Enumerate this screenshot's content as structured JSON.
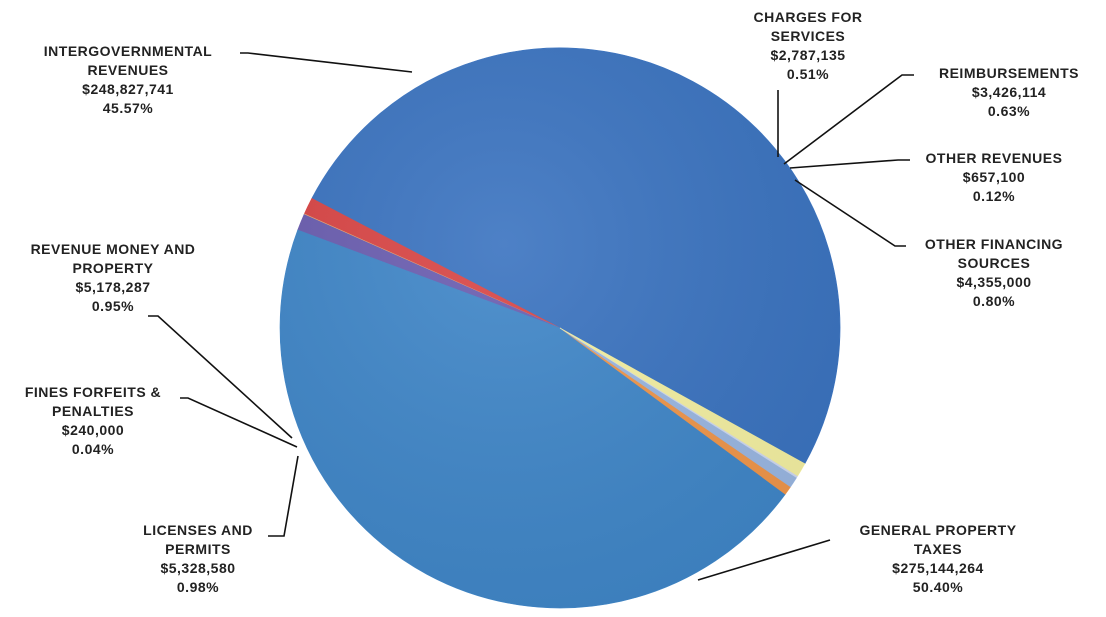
{
  "chart_data": {
    "type": "pie",
    "start_angle_deg": 331,
    "direction": "counterclockwise",
    "colors": {
      "intergovernmental": "#3f86c8",
      "charges": "#f0964a",
      "reimbursements": "#9ab7e2",
      "other_revenues": "#cfd9f2",
      "other_financing": "#f4f0a2",
      "general_property": "#3a73c0",
      "licenses": "#d94545",
      "fines": "#ecae73",
      "revenue_money": "#6a5db0",
      "leader": "#111111"
    },
    "slices": [
      {
        "key": "general_property",
        "name_lines": [
          "GENERAL PROPERTY",
          "TAXES"
        ],
        "value_text": "$275,144,264",
        "percent_text": "50.40%",
        "value": 275144264,
        "percent": 50.4
      },
      {
        "key": "licenses",
        "name_lines": [
          "LICENSES AND",
          "PERMITS"
        ],
        "value_text": "$5,328,580",
        "percent_text": "0.98%",
        "value": 5328580,
        "percent": 0.98
      },
      {
        "key": "fines",
        "name_lines": [
          "FINES FORFEITS &",
          "PENALTIES"
        ],
        "value_text": "$240,000",
        "percent_text": "0.04%",
        "value": 240000,
        "percent": 0.04
      },
      {
        "key": "revenue_money",
        "name_lines": [
          "REVENUE MONEY AND",
          "PROPERTY"
        ],
        "value_text": "$5,178,287",
        "percent_text": "0.95%",
        "value": 5178287,
        "percent": 0.95
      },
      {
        "key": "intergovernmental",
        "name_lines": [
          "INTERGOVERNMENTAL",
          "REVENUES"
        ],
        "value_text": "$248,827,741",
        "percent_text": "45.57%",
        "value": 248827741,
        "percent": 45.57
      },
      {
        "key": "charges",
        "name_lines": [
          "CHARGES FOR",
          "SERVICES"
        ],
        "value_text": "$2,787,135",
        "percent_text": "0.51%",
        "value": 2787135,
        "percent": 0.51
      },
      {
        "key": "reimbursements",
        "name_lines": [
          "REIMBURSEMENTS"
        ],
        "value_text": "$3,426,114",
        "percent_text": "0.63%",
        "value": 3426114,
        "percent": 0.63
      },
      {
        "key": "other_revenues",
        "name_lines": [
          "OTHER REVENUES"
        ],
        "value_text": "$657,100",
        "percent_text": "0.12%",
        "value": 657100,
        "percent": 0.12
      },
      {
        "key": "other_financing",
        "name_lines": [
          "OTHER FINANCING",
          "SOURCES"
        ],
        "value_text": "$4,355,000",
        "percent_text": "0.80%",
        "value": 4355000,
        "percent": 0.8
      }
    ]
  }
}
